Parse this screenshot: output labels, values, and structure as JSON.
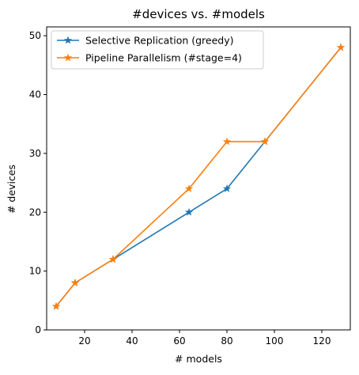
{
  "chart_data": {
    "type": "line",
    "title": "#devices vs. #models",
    "xlabel": "# models",
    "ylabel": "# devices",
    "xlim": [
      4,
      132
    ],
    "ylim": [
      0,
      51.5
    ],
    "xticks": [
      20,
      40,
      60,
      80,
      100,
      120
    ],
    "yticks": [
      0,
      10,
      20,
      30,
      40,
      50
    ],
    "grid": false,
    "legend_position": "top-left",
    "marker": "star",
    "series": [
      {
        "name": "Selective Replication (greedy)",
        "color": "#1f77b4",
        "x": [
          8,
          16,
          32,
          64,
          80,
          96,
          128
        ],
        "y": [
          4,
          8,
          12,
          20,
          24,
          32,
          48
        ]
      },
      {
        "name": "Pipeline Parallelism (#stage=4)",
        "color": "#ff7f0e",
        "x": [
          8,
          16,
          32,
          64,
          80,
          96,
          128
        ],
        "y": [
          4,
          8,
          12,
          24,
          32,
          32,
          48
        ]
      }
    ]
  }
}
